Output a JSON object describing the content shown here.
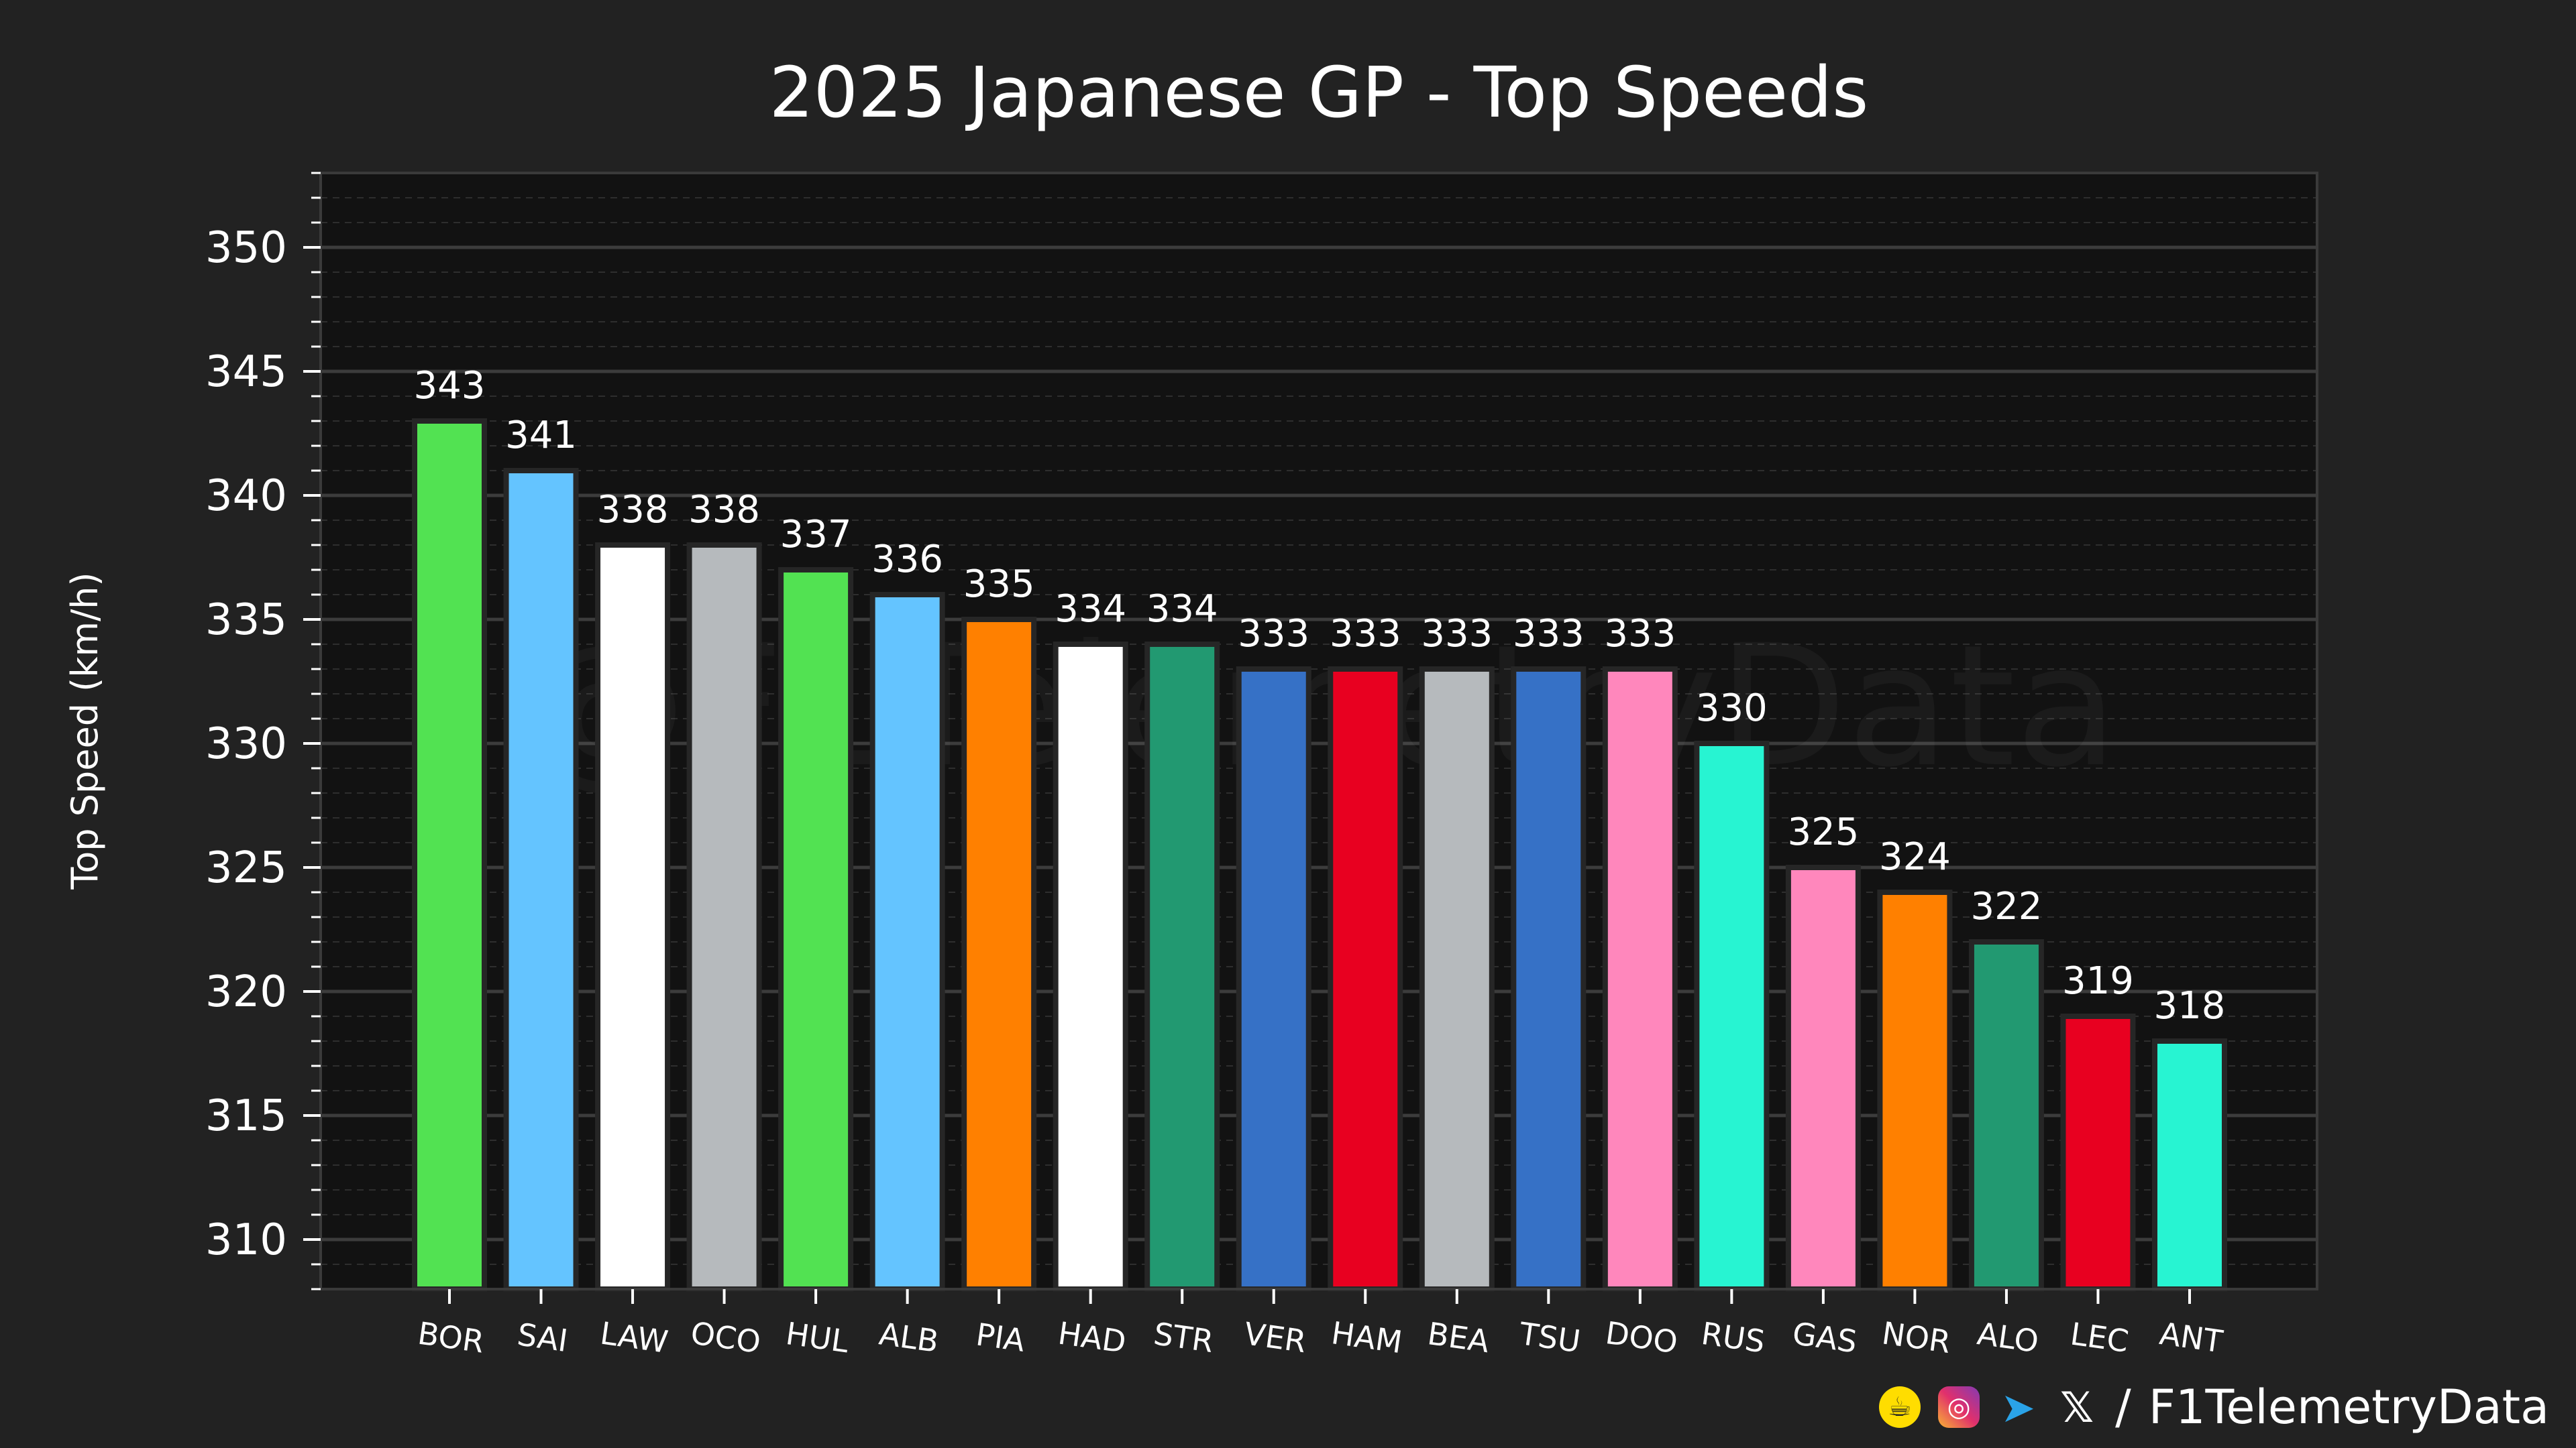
{
  "chart_data": {
    "type": "bar",
    "title": "2025 Japanese GP - Top Speeds",
    "xlabel": "",
    "ylabel": "Top Speed (km/h)",
    "ylim": [
      308,
      353
    ],
    "yticks": [
      310,
      315,
      320,
      325,
      330,
      335,
      340,
      345,
      350
    ],
    "ytick_labels": [
      "310",
      "315",
      "320",
      "325",
      "330",
      "335",
      "340",
      "345",
      "350"
    ],
    "grid": true,
    "categories": [
      "BOR",
      "SAI",
      "LAW",
      "OCO",
      "HUL",
      "ALB",
      "PIA",
      "HAD",
      "STR",
      "VER",
      "HAM",
      "BEA",
      "TSU",
      "DOO",
      "RUS",
      "GAS",
      "NOR",
      "ALO",
      "LEC",
      "ANT"
    ],
    "values": [
      343,
      341,
      338,
      338,
      337,
      336,
      335,
      334,
      334,
      333,
      333,
      333,
      333,
      333,
      330,
      325,
      324,
      322,
      319,
      318
    ],
    "value_labels": [
      "343",
      "341",
      "338",
      "338",
      "337",
      "336",
      "335",
      "334",
      "334",
      "333",
      "333",
      "333",
      "333",
      "333",
      "330",
      "325",
      "324",
      "322",
      "319",
      "318"
    ],
    "colors": [
      "#52e252",
      "#64c4ff",
      "#ffffff",
      "#b6babd",
      "#52e252",
      "#64c4ff",
      "#ff8000",
      "#ffffff",
      "#229971",
      "#3671c6",
      "#e80020",
      "#b6babd",
      "#3671c6",
      "#ff87bc",
      "#27f4d2",
      "#ff87bc",
      "#ff8000",
      "#229971",
      "#e80020",
      "#27f4d2"
    ]
  },
  "watermark": "@F1TelemetryData",
  "footer": {
    "icons": [
      "coffee-icon",
      "instagram-icon",
      "telegram-icon",
      "x-icon"
    ],
    "separator": "/",
    "handle": "F1TelemetryData"
  }
}
